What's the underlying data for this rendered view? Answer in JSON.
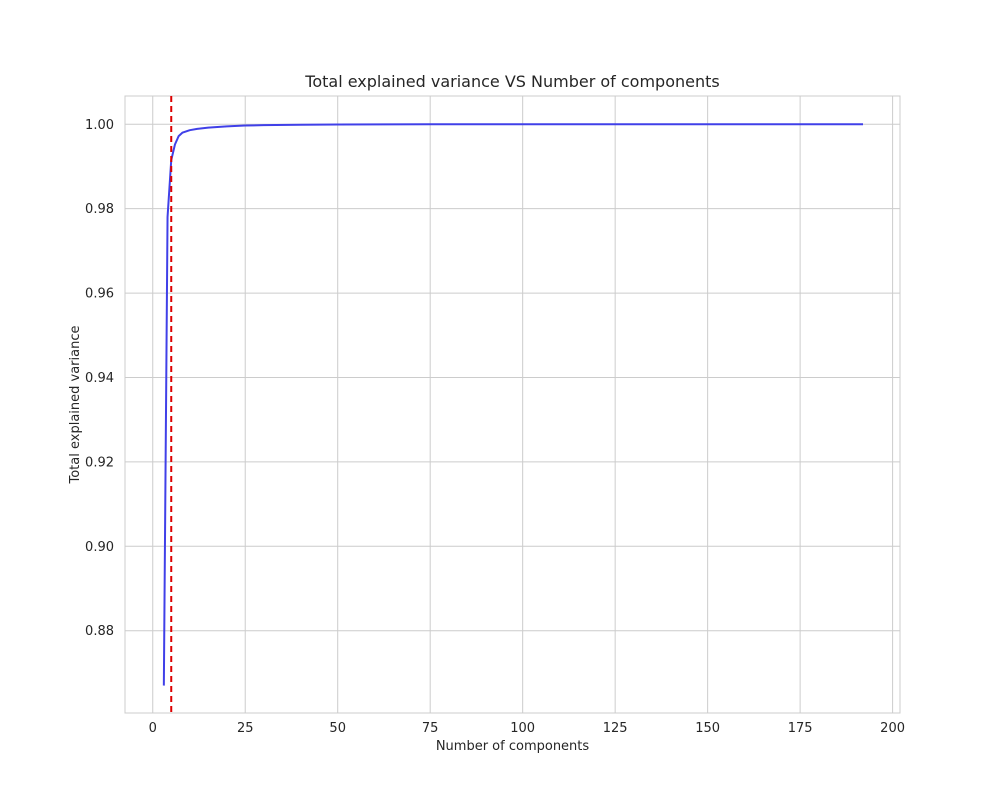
{
  "chart_data": {
    "type": "line",
    "title": "Total explained variance VS Number of components",
    "xlabel": "Number of components",
    "ylabel": "Total explained variance",
    "xlim": [
      -7.5,
      202
    ],
    "ylim": [
      0.8605,
      1.0067
    ],
    "xticks": [
      0,
      25,
      50,
      75,
      100,
      125,
      150,
      175,
      200
    ],
    "xtick_labels": [
      "0",
      "25",
      "50",
      "75",
      "100",
      "125",
      "150",
      "175",
      "200"
    ],
    "yticks": [
      0.88,
      0.9,
      0.92,
      0.94,
      0.96,
      0.98,
      1.0
    ],
    "ytick_labels": [
      "0.88",
      "0.90",
      "0.92",
      "0.94",
      "0.96",
      "0.98",
      "1.00"
    ],
    "grid": true,
    "series": [
      {
        "color": "#4040e8",
        "x": [
          3,
          4,
          5,
          6,
          7,
          8,
          10,
          12,
          15,
          20,
          25,
          30,
          40,
          50,
          75,
          100,
          125,
          150,
          175,
          192
        ],
        "y": [
          0.867,
          0.978,
          0.9915,
          0.9952,
          0.9972,
          0.998,
          0.9986,
          0.9989,
          0.9992,
          0.9995,
          0.9997,
          0.9998,
          0.9999,
          0.99995,
          1.0,
          1.0,
          1.0,
          1.0,
          1.0,
          1.0
        ]
      }
    ],
    "vline": {
      "x": 5,
      "color": "#dd0000",
      "style": "dashed"
    }
  }
}
